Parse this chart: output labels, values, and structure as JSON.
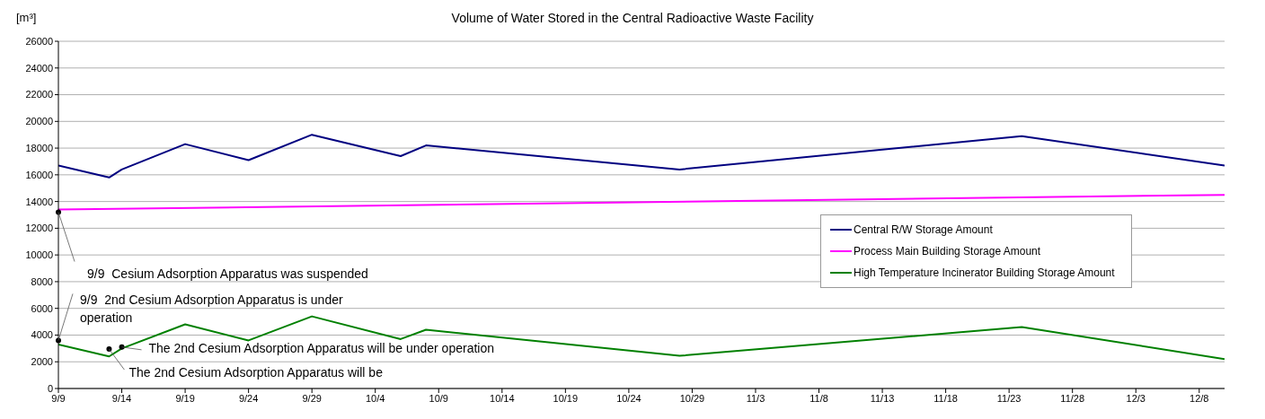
{
  "chart_data": {
    "type": "line",
    "title": "Volume of Water Stored in the Central Radioactive Waste Facility",
    "ylabel": "[m³]",
    "x": [
      "--09-09",
      "--09-13",
      "--09-14",
      "--09-19",
      "--09-24",
      "--09-29",
      "--10-06",
      "--10-08",
      "--10-28",
      "--11-24",
      "--12-10"
    ],
    "series": [
      {
        "name": "Central R/W Storage Amount",
        "color": "#000080",
        "values": [
          16700,
          15800,
          16400,
          18300,
          17100,
          19000,
          17400,
          18200,
          16400,
          18900,
          16700
        ]
      },
      {
        "name": "Process Main Building Storage Amount",
        "color": "#ff00ff",
        "x": [
          "--09-09",
          "--12-10"
        ],
        "values": [
          13400,
          14500
        ]
      },
      {
        "name": "High Temperature Incinerator Building Storage Amount",
        "color": "#008000",
        "values": [
          3300,
          2400,
          3000,
          4800,
          3600,
          5400,
          3700,
          4400,
          2450,
          4600,
          2200
        ]
      }
    ],
    "xlim": [
      "--09-09",
      "--12-10"
    ],
    "xticks": [
      {
        "value": "--09-09",
        "label": "9/9"
      },
      {
        "value": "--09-14",
        "label": "9/14"
      },
      {
        "value": "--09-19",
        "label": "9/19"
      },
      {
        "value": "--09-24",
        "label": "9/24"
      },
      {
        "value": "--09-29",
        "label": "9/29"
      },
      {
        "value": "--10-04",
        "label": "10/4"
      },
      {
        "value": "--10-09",
        "label": "10/9"
      },
      {
        "value": "--10-14",
        "label": "10/14"
      },
      {
        "value": "--10-19",
        "label": "10/19"
      },
      {
        "value": "--10-24",
        "label": "10/24"
      },
      {
        "value": "--10-29",
        "label": "10/29"
      },
      {
        "value": "--11-03",
        "label": "11/3"
      },
      {
        "value": "--11-08",
        "label": "11/8"
      },
      {
        "value": "--11-13",
        "label": "11/13"
      },
      {
        "value": "--11-18",
        "label": "11/18"
      },
      {
        "value": "--11-23",
        "label": "11/23"
      },
      {
        "value": "--11-28",
        "label": "11/28"
      },
      {
        "value": "--12-03",
        "label": "12/3"
      },
      {
        "value": "--12-08",
        "label": "12/8"
      }
    ],
    "ylim": [
      0,
      26000
    ],
    "yticks": [
      0,
      2000,
      4000,
      6000,
      8000,
      10000,
      12000,
      14000,
      16000,
      18000,
      20000,
      22000,
      24000,
      26000
    ],
    "grid": "y",
    "legend": "right",
    "marker": "none",
    "line_style": "solid",
    "annotations": [
      {
        "text": "9/9  Cesium Adsorption Apparatus was suspended",
        "x": "--09-09",
        "y": 13200
      },
      {
        "text": "9/9  2nd Cesium Adsorption Apparatus is under operation",
        "x": "--09-09",
        "y": 3600
      },
      {
        "text": "The 2nd Cesium Adsorption Apparatus will be under operation",
        "x": "--09-14",
        "y": 3100
      },
      {
        "text": "The 2nd Cesium Adsorption Apparatus will be",
        "x": "--09-13",
        "y": 2950
      }
    ]
  }
}
